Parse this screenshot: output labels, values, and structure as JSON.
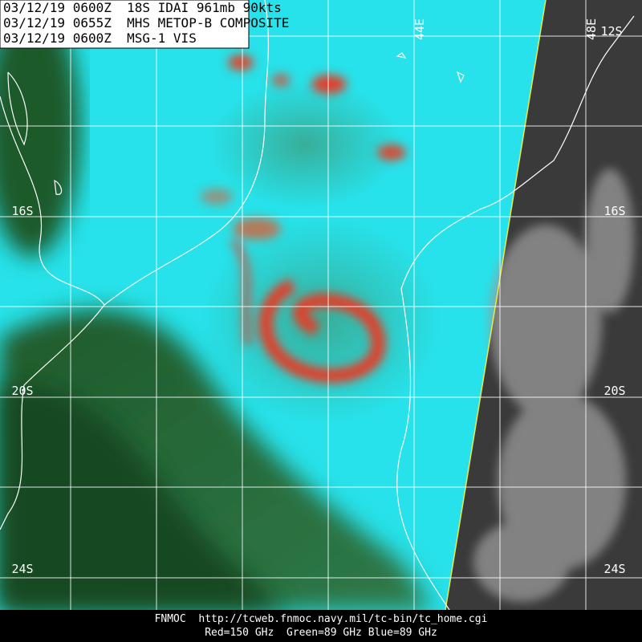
{
  "header": {
    "lines": [
      "03/12/19 0600Z  18S IDAI 961mb 90kts",
      "03/12/19 0655Z  MHS METOP-B COMPOSITE",
      "03/12/19 0600Z  MSG-1 VIS"
    ]
  },
  "labels": {
    "lon": [
      "44E",
      "48E"
    ],
    "lat": [
      "12S",
      "16S",
      "20S",
      "24S"
    ]
  },
  "footer": {
    "lines": [
      "FNMOC  http://tcweb.fnmoc.navy.mil/tc-bin/tc_home.cgi",
      "Red=150 GHz  Green=89 GHz Blue=89 GHz"
    ]
  }
}
